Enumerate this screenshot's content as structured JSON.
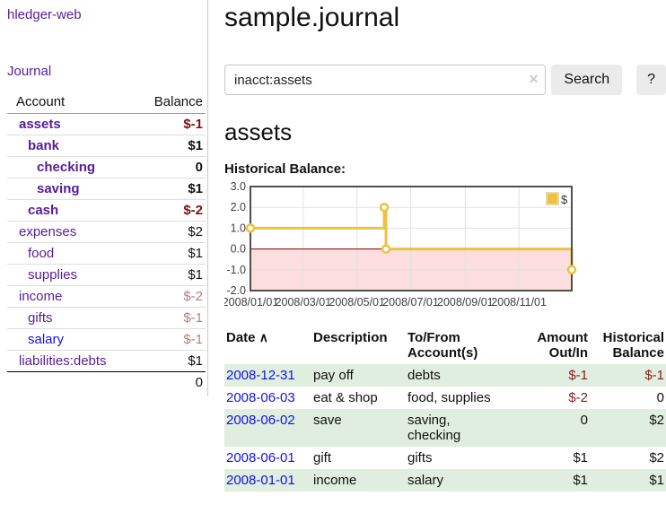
{
  "app_title": "hledger-web",
  "sidebar": {
    "journal_link": "Journal",
    "accounts": {
      "col_account": "Account",
      "col_balance": "Balance",
      "rows": [
        {
          "name": "assets",
          "balance": "$-1",
          "depth": 1,
          "bold": true,
          "balance_style": "neg-strong",
          "link_color": "purple"
        },
        {
          "name": "bank",
          "balance": "$1",
          "depth": 2,
          "bold": true,
          "balance_style": "normal",
          "link_color": "purple"
        },
        {
          "name": "checking",
          "balance": "0",
          "depth": 3,
          "bold": true,
          "balance_style": "normal",
          "link_color": "purple"
        },
        {
          "name": "saving",
          "balance": "$1",
          "depth": 3,
          "bold": true,
          "balance_style": "normal",
          "link_color": "purple"
        },
        {
          "name": "cash",
          "balance": "$-2",
          "depth": 2,
          "bold": true,
          "balance_style": "neg-strong",
          "link_color": "purple"
        },
        {
          "name": "expenses",
          "balance": "$2",
          "depth": 1,
          "bold": false,
          "balance_style": "normal",
          "link_color": "purple"
        },
        {
          "name": "food",
          "balance": "$1",
          "depth": 2,
          "bold": false,
          "balance_style": "normal",
          "link_color": "purple"
        },
        {
          "name": "supplies",
          "balance": "$1",
          "depth": 2,
          "bold": false,
          "balance_style": "normal",
          "link_color": "purple"
        },
        {
          "name": "income",
          "balance": "$-2",
          "depth": 1,
          "bold": false,
          "balance_style": "neg-muted",
          "link_color": "purple"
        },
        {
          "name": "gifts",
          "balance": "$-1",
          "depth": 2,
          "bold": false,
          "balance_style": "neg-muted",
          "link_color": "purple"
        },
        {
          "name": "salary",
          "balance": "$-1",
          "depth": 2,
          "bold": false,
          "balance_style": "neg-muted",
          "link_color": "blue"
        },
        {
          "name": "liabilities:debts",
          "balance": "$1",
          "depth": 1,
          "bold": false,
          "balance_style": "normal",
          "link_color": "purple"
        }
      ],
      "total": "0"
    }
  },
  "header": {
    "title": "sample.journal"
  },
  "search": {
    "value": "inacct:assets",
    "clear_icon": "✕",
    "search_button": "Search",
    "help_button": "?"
  },
  "account_page": {
    "heading": "assets",
    "chart_title": "Historical Balance:"
  },
  "chart_data": {
    "type": "line",
    "style": "step",
    "title": "Historical Balance:",
    "legend": "$",
    "legend_position": "top-right",
    "grid": true,
    "ylim": [
      -2.0,
      3.0
    ],
    "y_ticks": [
      3.0,
      2.0,
      1.0,
      0.0,
      -1.0,
      -2.0
    ],
    "x_ticks": [
      "2008/01/01",
      "2008/03/01",
      "2008/05/01",
      "2008/07/01",
      "2008/09/01",
      "2008/11/01"
    ],
    "x_tick_days": [
      0,
      60,
      121,
      182,
      244,
      305
    ],
    "xlim_days": [
      0,
      365
    ],
    "series": [
      {
        "name": "$",
        "color": "#edc240",
        "points": [
          {
            "date": "2008-01-01",
            "day": 0,
            "value": 1.0
          },
          {
            "date": "2008-06-01",
            "day": 152,
            "value": 2.0
          },
          {
            "date": "2008-06-03",
            "day": 154,
            "value": 0.0
          },
          {
            "date": "2008-12-31",
            "day": 365,
            "value": -1.0
          }
        ]
      }
    ],
    "negative_region_color": "#fcdede",
    "zero_line_color": "#7a0000",
    "grid_color": "#e2e2e2",
    "border_color": "#4f4f4f"
  },
  "register_table": {
    "headers": {
      "date": "Date",
      "sort_icon": "∧",
      "description": "Description",
      "account": "To/From Account(s)",
      "amount": "Amount Out/In",
      "balance": "Historical Balance"
    },
    "rows": [
      {
        "date": "2008-12-31",
        "description": "pay off",
        "account": "debts",
        "amount": "$-1",
        "balance": "$-1",
        "amount_negative": true,
        "balance_negative": true
      },
      {
        "date": "2008-06-03",
        "description": "eat & shop",
        "account": "food, supplies",
        "amount": "$-2",
        "balance": "0",
        "amount_negative": true,
        "balance_negative": false
      },
      {
        "date": "2008-06-02",
        "description": "save",
        "account": "saving,\nchecking",
        "amount": "0",
        "balance": "$2",
        "amount_negative": false,
        "balance_negative": false
      },
      {
        "date": "2008-06-01",
        "description": "gift",
        "account": "gifts",
        "amount": "$1",
        "balance": "$2",
        "amount_negative": false,
        "balance_negative": false
      },
      {
        "date": "2008-01-01",
        "description": "income",
        "account": "salary",
        "amount": "$1",
        "balance": "$1",
        "amount_negative": false,
        "balance_negative": false
      }
    ]
  }
}
